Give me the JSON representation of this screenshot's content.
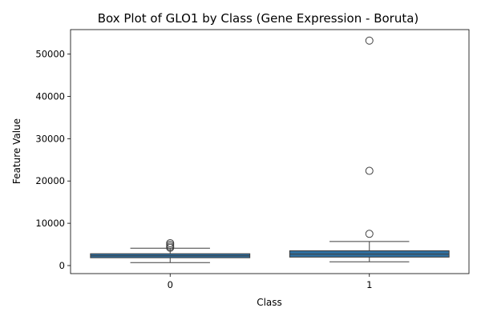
{
  "chart_data": {
    "type": "box",
    "title": "Box Plot of GLO1 by Class (Gene Expression - Boruta)",
    "xlabel": "Class",
    "ylabel": "Feature Value",
    "categories": [
      "0",
      "1"
    ],
    "yticks": [
      0,
      10000,
      20000,
      30000,
      40000,
      50000
    ],
    "ylim": [
      -1900,
      55800
    ],
    "grid": false,
    "legend": "none",
    "box_color": "#2f6f9f",
    "boxes": [
      {
        "category": "0",
        "whisker_low": 700,
        "q1": 1850,
        "median": 2300,
        "q3": 2800,
        "whisker_high": 4100,
        "outliers": [
          4200,
          4500,
          4900,
          5300
        ]
      },
      {
        "category": "1",
        "whisker_low": 900,
        "q1": 2000,
        "median": 2700,
        "q3": 3500,
        "whisker_high": 5700,
        "outliers": [
          7500,
          22400,
          53200
        ]
      }
    ]
  }
}
